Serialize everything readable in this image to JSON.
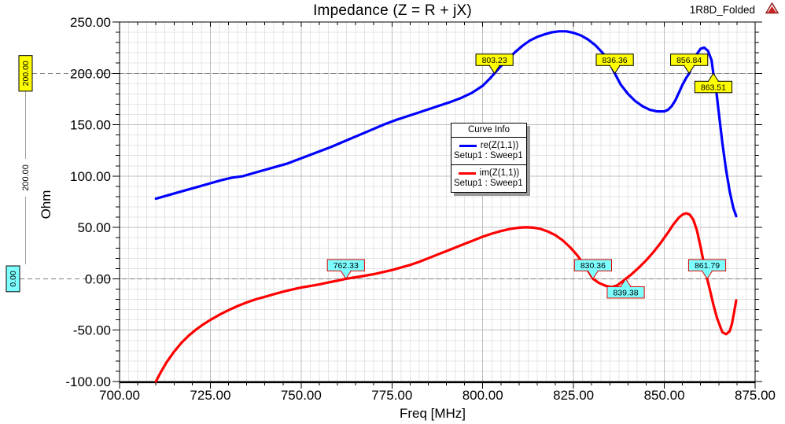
{
  "header": {
    "title": "Impedance (Z = R + jX)",
    "project_label": "1R8D_Folded"
  },
  "legend": {
    "title": "Curve Info",
    "entries": [
      {
        "name": "re(Z(1,1))",
        "sub": "Setup1 : Sweep1"
      },
      {
        "name": "im(Z(1,1))",
        "sub": "Setup1 : Sweep1"
      }
    ]
  },
  "chart_data": {
    "type": "line",
    "title": "Impedance (Z = R + jX)",
    "xlabel": "Freq [MHz]",
    "ylabel": "Ohm",
    "xlim": [
      700,
      875
    ],
    "ylim": [
      -100,
      250
    ],
    "grid": true,
    "x_tick_values": [
      700,
      725,
      750,
      775,
      800,
      825,
      850,
      875
    ],
    "x_tick_labels": [
      "700.00",
      "725.00",
      "750.00",
      "775.00",
      "800.00",
      "825.00",
      "850.00",
      "875.00"
    ],
    "y_tick_values": [
      250,
      200,
      150,
      100,
      50,
      0,
      -50,
      -100
    ],
    "y_tick_labels": [
      "250.00",
      "200.00",
      "150.00",
      "100.00",
      "50.00",
      "0.00",
      "-50.00",
      "-100.00"
    ],
    "x_minor_grid_step": 2.5,
    "x_minor_tick_step": 5,
    "x_major_step": 25,
    "y_minor_step": 10,
    "y_major_step": 50,
    "colors": {
      "grid_minor": "#e4e4e4",
      "grid_major": "#bfbfbf",
      "axis": "#000000",
      "marker_line": "#7f7f7f",
      "ruler": "#a0a0a0"
    },
    "series": [
      {
        "name": "re(Z(1,1))",
        "setup": "Setup1 : Sweep1",
        "color": "#0000ff",
        "marker_fill": "#ffff00",
        "marker_border": "#000000",
        "points": [
          [
            710,
            78
          ],
          [
            713,
            81
          ],
          [
            716,
            84
          ],
          [
            719,
            87
          ],
          [
            722,
            90
          ],
          [
            725,
            93
          ],
          [
            728,
            96
          ],
          [
            731,
            98.5
          ],
          [
            734,
            100
          ],
          [
            737,
            103
          ],
          [
            740,
            106
          ],
          [
            743,
            109
          ],
          [
            746,
            112
          ],
          [
            749,
            116
          ],
          [
            752,
            120
          ],
          [
            755,
            124
          ],
          [
            758,
            128
          ],
          [
            761,
            132.5
          ],
          [
            764,
            137
          ],
          [
            767,
            141.5
          ],
          [
            770,
            146
          ],
          [
            773,
            150.5
          ],
          [
            776,
            154.5
          ],
          [
            779,
            158
          ],
          [
            782,
            161.5
          ],
          [
            785,
            165
          ],
          [
            788,
            168.5
          ],
          [
            791,
            172
          ],
          [
            794,
            176
          ],
          [
            797,
            181
          ],
          [
            800,
            188
          ],
          [
            802,
            195
          ],
          [
            803.23,
            200
          ],
          [
            805,
            207
          ],
          [
            807,
            214
          ],
          [
            809,
            221
          ],
          [
            811,
            227
          ],
          [
            813,
            232
          ],
          [
            815,
            235.5
          ],
          [
            817,
            238
          ],
          [
            819,
            240
          ],
          [
            821,
            241
          ],
          [
            823,
            241
          ],
          [
            825,
            239.5
          ],
          [
            827,
            237
          ],
          [
            829,
            233
          ],
          [
            831,
            227.5
          ],
          [
            833,
            220
          ],
          [
            835,
            210
          ],
          [
            836.36,
            200
          ],
          [
            838,
            189
          ],
          [
            840,
            180
          ],
          [
            842,
            173
          ],
          [
            844,
            168
          ],
          [
            846,
            164.5
          ],
          [
            848,
            163
          ],
          [
            850,
            163
          ],
          [
            851,
            164.5
          ],
          [
            852,
            168
          ],
          [
            853,
            173.5
          ],
          [
            854,
            181
          ],
          [
            855,
            189
          ],
          [
            856,
            195.5
          ],
          [
            856.84,
            200
          ],
          [
            858,
            211
          ],
          [
            859,
            219
          ],
          [
            860,
            224
          ],
          [
            861,
            225
          ],
          [
            862,
            222
          ],
          [
            863,
            213
          ],
          [
            863.51,
            200
          ],
          [
            864.3,
            183
          ],
          [
            865,
            162
          ],
          [
            866,
            132
          ],
          [
            867,
            106
          ],
          [
            868,
            85
          ],
          [
            869,
            69
          ],
          [
            869.8,
            61
          ]
        ]
      },
      {
        "name": "im(Z(1,1))",
        "setup": "Setup1 : Sweep1",
        "color": "#ff0000",
        "marker_fill": "#7dffff",
        "marker_border": "#e00000",
        "points": [
          [
            710,
            -100
          ],
          [
            711.5,
            -90
          ],
          [
            713,
            -81
          ],
          [
            715,
            -71
          ],
          [
            717,
            -62.5
          ],
          [
            719,
            -55.5
          ],
          [
            721,
            -49.5
          ],
          [
            723,
            -44.5
          ],
          [
            725,
            -40
          ],
          [
            727.5,
            -35
          ],
          [
            730,
            -30.5
          ],
          [
            732.5,
            -26.5
          ],
          [
            735,
            -23
          ],
          [
            737.5,
            -20
          ],
          [
            740,
            -17.5
          ],
          [
            742.5,
            -15
          ],
          [
            745,
            -12.5
          ],
          [
            747.5,
            -10.5
          ],
          [
            750,
            -8.5
          ],
          [
            752.5,
            -7
          ],
          [
            755,
            -5.5
          ],
          [
            757.5,
            -3.5
          ],
          [
            760,
            -1.8
          ],
          [
            762.33,
            0
          ],
          [
            765,
            1.5
          ],
          [
            767.5,
            3
          ],
          [
            770,
            4.5
          ],
          [
            772.5,
            6.5
          ],
          [
            775,
            8.5
          ],
          [
            777.5,
            11
          ],
          [
            780,
            13.5
          ],
          [
            782.5,
            16.5
          ],
          [
            785,
            20
          ],
          [
            787.5,
            23.5
          ],
          [
            790,
            27
          ],
          [
            792.5,
            30.5
          ],
          [
            795,
            34
          ],
          [
            797.5,
            37.5
          ],
          [
            800,
            41
          ],
          [
            802.5,
            44
          ],
          [
            805,
            46.5
          ],
          [
            807.5,
            48.5
          ],
          [
            810,
            49.8
          ],
          [
            812,
            50.2
          ],
          [
            814,
            49.8
          ],
          [
            816,
            48.5
          ],
          [
            818,
            46
          ],
          [
            820,
            42.5
          ],
          [
            822,
            37.5
          ],
          [
            824,
            31
          ],
          [
            826,
            23
          ],
          [
            828,
            13.5
          ],
          [
            830.36,
            0
          ],
          [
            832,
            -4
          ],
          [
            834,
            -7
          ],
          [
            835.5,
            -8
          ],
          [
            837,
            -6.5
          ],
          [
            838.5,
            -2.5
          ],
          [
            839.38,
            0
          ],
          [
            841,
            4.5
          ],
          [
            843,
            11
          ],
          [
            845,
            18
          ],
          [
            847,
            26
          ],
          [
            849,
            35
          ],
          [
            851,
            45
          ],
          [
            852.5,
            53
          ],
          [
            854,
            59.5
          ],
          [
            855,
            62.5
          ],
          [
            856,
            63.8
          ],
          [
            857,
            62.5
          ],
          [
            858,
            57.5
          ],
          [
            859,
            47
          ],
          [
            860,
            31
          ],
          [
            861,
            13
          ],
          [
            861.79,
            0
          ],
          [
            862.5,
            -10
          ],
          [
            863.5,
            -25
          ],
          [
            864.5,
            -38
          ],
          [
            865.5,
            -47.5
          ],
          [
            866,
            -52
          ],
          [
            867,
            -54
          ],
          [
            868,
            -51
          ],
          [
            868.6,
            -44
          ],
          [
            869.2,
            -33
          ],
          [
            869.8,
            -21
          ]
        ]
      }
    ],
    "curve_markers": [
      {
        "series": 0,
        "label": "803.23",
        "x": 803.23,
        "y": 200,
        "side": "top"
      },
      {
        "series": 0,
        "label": "836.36",
        "x": 836.36,
        "y": 200,
        "side": "top"
      },
      {
        "series": 0,
        "label": "856.84",
        "x": 856.84,
        "y": 200,
        "side": "top"
      },
      {
        "series": 0,
        "label": "863.51",
        "x": 863.51,
        "y": 200,
        "side": "bottom"
      },
      {
        "series": 1,
        "label": "762.33",
        "x": 762.33,
        "y": 0,
        "side": "top"
      },
      {
        "series": 1,
        "label": "830.36",
        "x": 830.36,
        "y": 0,
        "side": "top"
      },
      {
        "series": 1,
        "label": "839.38",
        "x": 839.38,
        "y": 0,
        "side": "bottom"
      },
      {
        "series": 1,
        "label": "861.79",
        "x": 861.79,
        "y": 0,
        "side": "top"
      }
    ],
    "line_markers": [
      {
        "label": "200.00",
        "value": 200,
        "fill": "#ffff00",
        "border": "#000000"
      },
      {
        "label": "0.00",
        "value": 0,
        "fill": "#7dffff",
        "border": "#000000"
      }
    ],
    "delta_ruler": {
      "label": "200.00"
    }
  }
}
